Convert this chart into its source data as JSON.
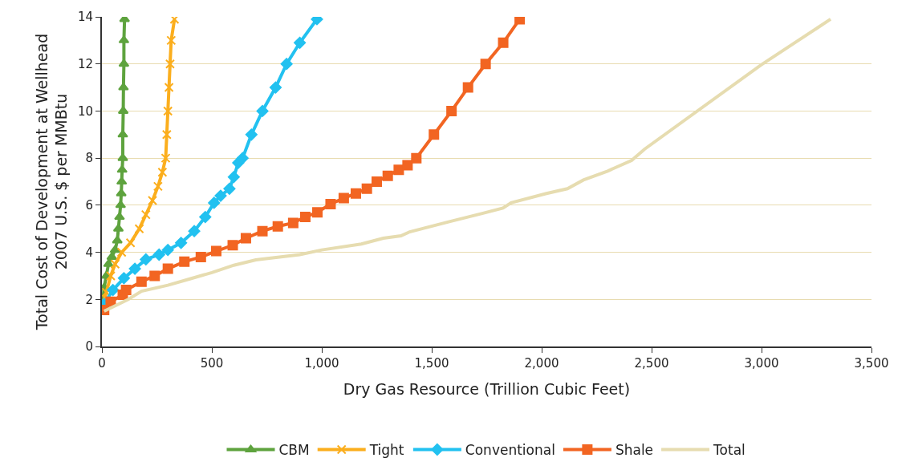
{
  "chart_data": {
    "type": "line",
    "xlabel": "Dry Gas Resource (Trillion Cubic Feet)",
    "ylabel": "Total Cost of Development at Wellhead\n2007 U.S. $ per MMBtu",
    "xlim": [
      0,
      3500
    ],
    "xticks": [
      0,
      500,
      {
        "value": 1000,
        "label": "1,000"
      },
      {
        "value": 1500,
        "label": "1,500"
      },
      {
        "value": 2000,
        "label": "2,000"
      },
      {
        "value": 2500,
        "label": "2,500"
      },
      {
        "value": 3000,
        "label": "3,000"
      },
      {
        "value": 3500,
        "label": "3,500"
      }
    ],
    "ylim": [
      0,
      14
    ],
    "yticks": [
      0,
      2,
      4,
      6,
      8,
      10,
      12,
      14
    ],
    "grid": "y",
    "legend": "bottom",
    "line_style": "solid",
    "series": [
      {
        "name": "CBM",
        "color": "#5ea33e",
        "marker": "triangle",
        "x": [
          0,
          5,
          10,
          20,
          30,
          45,
          60,
          70,
          75,
          80,
          85,
          88,
          90,
          92,
          95,
          95,
          97,
          98,
          100,
          100,
          103
        ],
        "values": [
          1.6,
          2.0,
          2.5,
          3.0,
          3.5,
          3.8,
          4.1,
          4.5,
          5.0,
          5.5,
          6.0,
          6.5,
          7.0,
          7.5,
          8.0,
          9.0,
          10.0,
          11.0,
          12.0,
          13.0,
          13.9
        ]
      },
      {
        "name": "Tight",
        "color": "#fbae1d",
        "marker": "cross",
        "x": [
          0,
          20,
          40,
          60,
          90,
          130,
          170,
          200,
          230,
          255,
          275,
          290,
          295,
          300,
          305,
          310,
          315,
          330
        ],
        "values": [
          1.7,
          2.3,
          3.0,
          3.5,
          4.0,
          4.4,
          5.0,
          5.6,
          6.2,
          6.8,
          7.4,
          8.0,
          9.0,
          10.0,
          11.0,
          12.0,
          13.0,
          13.9
        ]
      },
      {
        "name": "Conventional",
        "color": "#22c1f0",
        "marker": "diamond",
        "x": [
          10,
          50,
          100,
          150,
          200,
          260,
          300,
          360,
          420,
          470,
          510,
          540,
          580,
          600,
          620,
          640,
          680,
          730,
          790,
          840,
          900,
          978
        ],
        "values": [
          1.8,
          2.4,
          2.9,
          3.3,
          3.7,
          3.9,
          4.1,
          4.4,
          4.9,
          5.5,
          6.1,
          6.4,
          6.7,
          7.2,
          7.8,
          8.0,
          9.0,
          10.0,
          11.0,
          12.0,
          12.9,
          13.9
        ]
      },
      {
        "name": "Shale",
        "color": "#f26522",
        "marker": "square",
        "x": [
          10,
          40,
          95,
          110,
          180,
          240,
          300,
          375,
          450,
          520,
          595,
          655,
          730,
          800,
          870,
          925,
          980,
          1040,
          1100,
          1155,
          1205,
          1250,
          1300,
          1350,
          1390,
          1430,
          1510,
          1590,
          1665,
          1745,
          1825,
          1900
        ],
        "values": [
          1.55,
          1.9,
          2.2,
          2.4,
          2.75,
          3.0,
          3.3,
          3.6,
          3.8,
          4.05,
          4.3,
          4.6,
          4.9,
          5.1,
          5.25,
          5.5,
          5.7,
          6.05,
          6.3,
          6.5,
          6.7,
          7.0,
          7.25,
          7.5,
          7.7,
          8.0,
          9.0,
          10.0,
          11.0,
          12.0,
          12.9,
          13.9
        ]
      },
      {
        "name": "Total",
        "color": "#e6dcb0",
        "marker": "none",
        "x": [
          10,
          120,
          180,
          300,
          400,
          500,
          600,
          700,
          900,
          1000,
          1180,
          1280,
          1360,
          1400,
          1580,
          1726,
          1824,
          1861,
          2018,
          2117,
          2190,
          2300,
          2409,
          2468,
          2997,
          3314
        ],
        "values": [
          1.5,
          2.0,
          2.35,
          2.6,
          2.87,
          3.14,
          3.45,
          3.68,
          3.9,
          4.1,
          4.35,
          4.6,
          4.7,
          4.87,
          5.3,
          5.64,
          5.88,
          6.1,
          6.49,
          6.7,
          7.07,
          7.45,
          7.9,
          8.38,
          11.95,
          13.9
        ]
      }
    ]
  }
}
